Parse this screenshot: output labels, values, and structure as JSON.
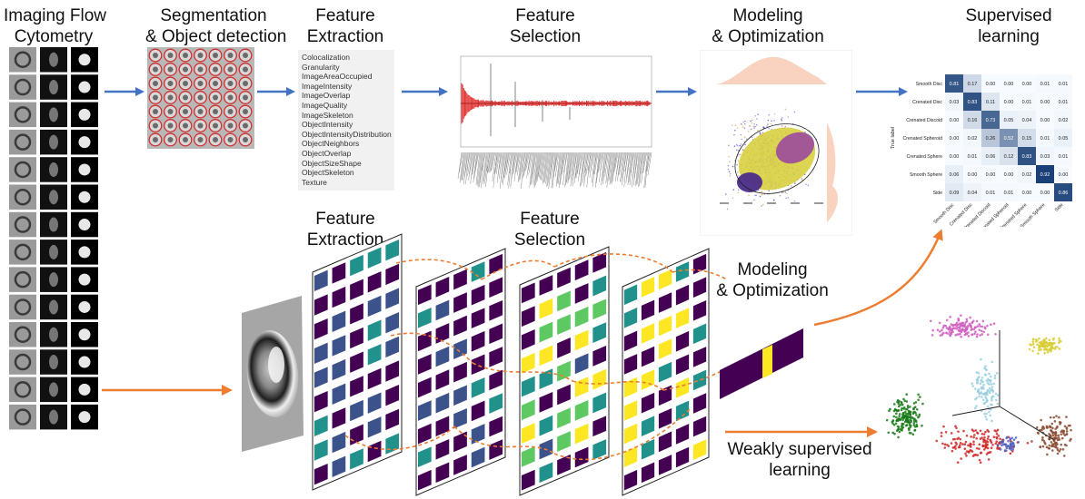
{
  "top_labels": {
    "imaging": [
      "Imaging Flow",
      "Cytometry"
    ],
    "segmentation": [
      "Segmentation",
      "& Object detection"
    ],
    "feature_extraction": [
      "Feature",
      "Extraction"
    ],
    "feature_selection": [
      "Feature",
      "Selection"
    ],
    "modeling": [
      "Modeling",
      "& Optimization"
    ],
    "supervised": [
      "Supervised",
      "learning"
    ]
  },
  "bottom_labels": {
    "feature_extraction": [
      "Feature",
      "Extraction"
    ],
    "feature_selection": [
      "Feature",
      "Selection"
    ],
    "modeling": [
      "Modeling",
      "& Optimization"
    ],
    "weakly": [
      "Weakly supervised",
      "learning"
    ]
  },
  "feature_list": [
    "Colocalization",
    "Granularity",
    "ImageAreaOccupied",
    "ImageIntensity",
    "ImageOverlap",
    "ImageQuality",
    "ImageSkeleton",
    "ObjectIntensity",
    "ObjectIntensityDistribution",
    "ObjectNeighbors",
    "ObjectOverlap",
    "ObjectSizeShape",
    "ObjectSkeleton",
    "Texture"
  ],
  "confusion_matrix": {
    "classes": [
      "Smooth Disc",
      "Crenated Disc",
      "Crenated Discoid",
      "Crenated Spheroid",
      "Crenated Sphere",
      "Smooth Sphere",
      "Side"
    ],
    "values": [
      [
        0.81,
        0.17,
        0.0,
        0.0,
        0.0,
        0.01,
        0.01
      ],
      [
        0.03,
        0.83,
        0.11,
        0.0,
        0.01,
        0.0,
        0.01
      ],
      [
        0.0,
        0.16,
        0.73,
        0.05,
        0.04,
        0.0,
        0.02
      ],
      [
        0.0,
        0.02,
        0.26,
        0.52,
        0.15,
        0.01,
        0.05
      ],
      [
        0.0,
        0.01,
        0.06,
        0.12,
        0.83,
        0.03,
        0.01
      ],
      [
        0.06,
        0.0,
        0.0,
        0.0,
        0.02,
        0.92,
        0.0
      ],
      [
        0.09,
        0.04,
        0.01,
        0.01,
        0.0,
        0.0,
        0.86
      ]
    ],
    "xlabel": "Predicted label",
    "ylabel": "True label"
  },
  "colors": {
    "blue_arrow": "#4472c4",
    "orange_arrow": "#ed7d31",
    "viridis_dark": "#440154",
    "viridis_yellow": "#fde725",
    "selection_red": "#e03030"
  }
}
